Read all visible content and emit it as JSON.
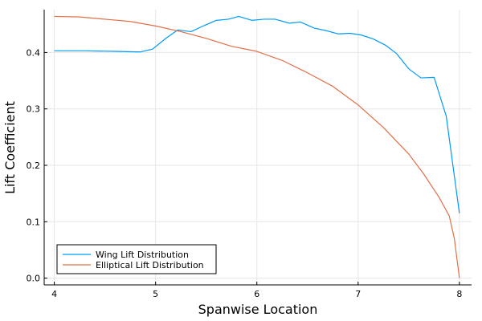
{
  "chart_data": {
    "type": "line",
    "xlabel": "Spanwise Location",
    "ylabel": "Lift Coefficient",
    "xlim": [
      3.9,
      8.12
    ],
    "ylim": [
      -0.012,
      0.476
    ],
    "xticks": [
      4,
      5,
      6,
      7,
      8
    ],
    "yticks": [
      0.0,
      0.1,
      0.2,
      0.3,
      0.4
    ],
    "xtick_labels": [
      "4",
      "5",
      "6",
      "7",
      "8"
    ],
    "ytick_labels": [
      "0.0",
      "0.1",
      "0.2",
      "0.3",
      "0.4"
    ],
    "grid": true,
    "legend_position": "bottom-left",
    "series": [
      {
        "name": "Wing Lift Distribution",
        "color": "#009AFA",
        "x": [
          4.0,
          4.3,
          4.6,
          4.85,
          4.97,
          5.1,
          5.22,
          5.35,
          5.47,
          5.6,
          5.72,
          5.82,
          5.95,
          6.07,
          6.18,
          6.32,
          6.43,
          6.57,
          6.68,
          6.8,
          6.92,
          7.03,
          7.15,
          7.27,
          7.38,
          7.5,
          7.62,
          7.75,
          7.87,
          8.0
        ],
        "y": [
          0.403,
          0.403,
          0.402,
          0.401,
          0.406,
          0.425,
          0.44,
          0.437,
          0.447,
          0.457,
          0.459,
          0.464,
          0.457,
          0.459,
          0.459,
          0.452,
          0.454,
          0.443,
          0.439,
          0.433,
          0.434,
          0.431,
          0.424,
          0.413,
          0.398,
          0.371,
          0.355,
          0.356,
          0.287,
          0.115
        ]
      },
      {
        "name": "Elliptical Lift Distribution",
        "color": "#E26F46",
        "x": [
          4.0,
          4.25,
          4.5,
          4.75,
          5.0,
          5.25,
          5.5,
          5.75,
          6.0,
          6.25,
          6.5,
          6.75,
          7.0,
          7.25,
          7.5,
          7.65,
          7.8,
          7.9,
          7.95,
          8.0
        ],
        "y": [
          0.464,
          0.463,
          0.459,
          0.455,
          0.447,
          0.437,
          0.425,
          0.411,
          0.402,
          0.386,
          0.364,
          0.34,
          0.307,
          0.267,
          0.22,
          0.184,
          0.143,
          0.11,
          0.07,
          0.0
        ]
      }
    ]
  }
}
